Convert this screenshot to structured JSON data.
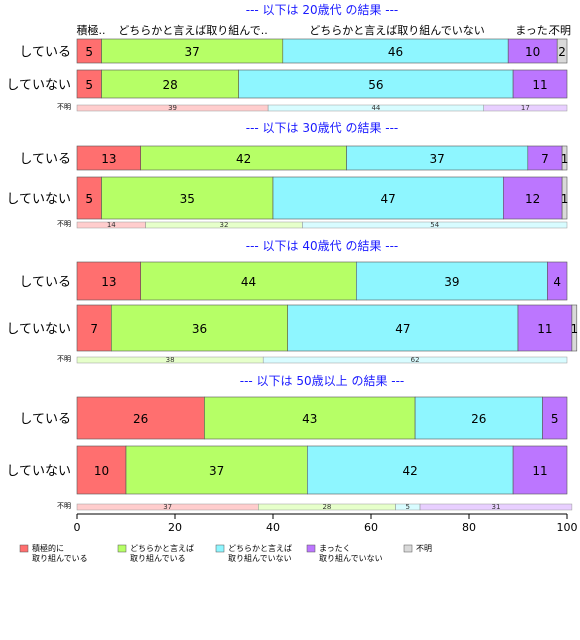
{
  "chart_data": {
    "type": "bar",
    "orientation": "horizontal",
    "stacked": "percent",
    "xlim": [
      0,
      100
    ],
    "xticks": [
      0,
      20,
      40,
      60,
      80,
      100
    ],
    "category_names": [
      "積極的に 取り組んでいる",
      "どちらかと言えば 取り組んでいる",
      "どちらかと言えば 取り組んでいない",
      "まったく 取り組んでいない",
      "不明"
    ],
    "colors": [
      "#FF6F6F",
      "#B6FF66",
      "#8EF6FF",
      "#BC76FF",
      "#D9D9D9"
    ],
    "unknown_row_label": "不明",
    "panels": [
      {
        "title": "--- 以下は 20歳代 の結果 ---",
        "header_labels": [
          "積極..",
          "どちらかと言えば取り組んで..",
          "どちらかと言えば取り組んでいない",
          "まった..",
          "不明"
        ],
        "rows": [
          {
            "label": "している",
            "values": [
              5,
              37,
              46,
              10,
              2
            ]
          },
          {
            "label": "していない",
            "values": [
              5,
              28,
              56,
              11,
              0
            ]
          }
        ],
        "unknown": [
          39,
          0,
          44,
          17,
          0
        ]
      },
      {
        "title": "--- 以下は 30歳代 の結果 ---",
        "rows": [
          {
            "label": "している",
            "values": [
              13,
              42,
              37,
              7,
              1
            ]
          },
          {
            "label": "していない",
            "values": [
              5,
              35,
              47,
              12,
              1
            ]
          }
        ],
        "unknown": [
          14,
          32,
          54,
          0,
          0
        ]
      },
      {
        "title": "--- 以下は 40歳代 の結果 ---",
        "rows": [
          {
            "label": "している",
            "values": [
              13,
              44,
              39,
              4,
              0
            ]
          },
          {
            "label": "していない",
            "values": [
              7,
              36,
              47,
              11,
              1
            ]
          }
        ],
        "unknown": [
          0,
          38,
          62,
          0,
          0
        ]
      },
      {
        "title": "--- 以下は 50歳以上 の結果 ---",
        "rows": [
          {
            "label": "している",
            "values": [
              26,
              43,
              26,
              5,
              0
            ]
          },
          {
            "label": "していない",
            "values": [
              10,
              37,
              42,
              11,
              0
            ]
          }
        ],
        "unknown": [
          37,
          28,
          5,
          31,
          0
        ]
      }
    ],
    "legend": [
      {
        "lines": [
          "積極的に",
          "取り組んでいる"
        ]
      },
      {
        "lines": [
          "どちらかと言えば",
          "取り組んでいる"
        ]
      },
      {
        "lines": [
          "どちらかと言えば",
          "取り組んでいない"
        ]
      },
      {
        "lines": [
          "まったく",
          "取り組んでいない"
        ]
      },
      {
        "lines": [
          "不明"
        ]
      }
    ],
    "legend_position": "bottom-left",
    "grid": false
  }
}
